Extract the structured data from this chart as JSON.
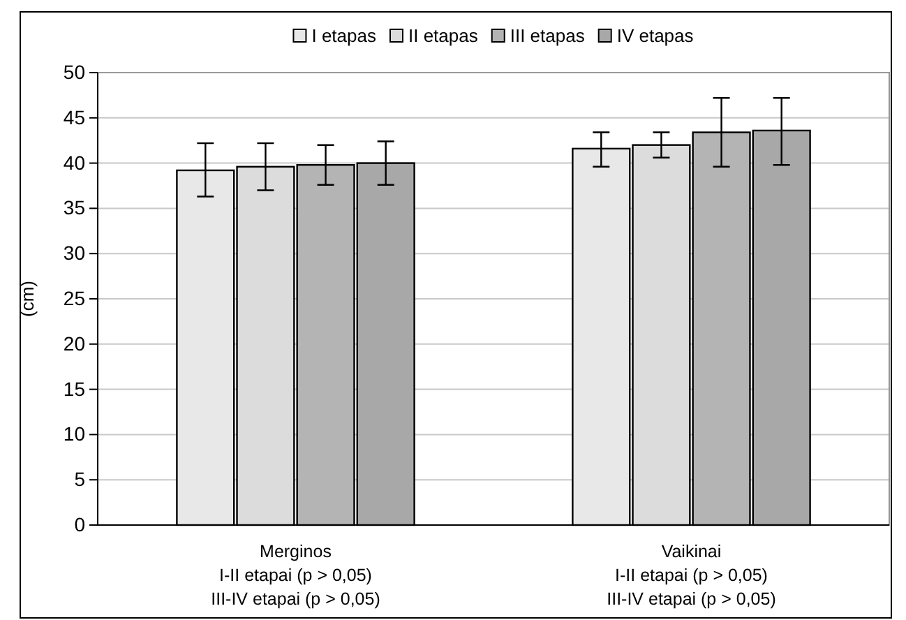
{
  "chart_data": {
    "type": "bar",
    "ylabel": "(cm)",
    "categories": [
      "Merginos\nI-II etapai (p > 0,05)\nIII-IV etapai (p > 0,05)",
      "Vaikinai\nI-II etapai (p > 0,05)\nIII-IV etapai (p > 0,05)"
    ],
    "series": [
      {
        "name": "I etapas",
        "color": "#e8e8e8",
        "values": [
          39.2,
          41.6
        ],
        "errors": [
          [
            36.3,
            42.2
          ],
          [
            39.6,
            43.4
          ]
        ]
      },
      {
        "name": "II etapas",
        "color": "#dcdcdc",
        "values": [
          39.6,
          42.0
        ],
        "errors": [
          [
            37.0,
            42.2
          ],
          [
            40.6,
            43.4
          ]
        ]
      },
      {
        "name": "III etapas",
        "color": "#b4b4b4",
        "values": [
          39.8,
          43.4
        ],
        "errors": [
          [
            37.6,
            42.0
          ],
          [
            39.6,
            47.2
          ]
        ]
      },
      {
        "name": "IV etapas",
        "color": "#a8a8a8",
        "values": [
          40.0,
          43.6
        ],
        "errors": [
          [
            37.6,
            42.4
          ],
          [
            39.8,
            47.2
          ]
        ]
      }
    ],
    "ylim": [
      0,
      50
    ],
    "yticks": [
      0,
      5,
      10,
      15,
      20,
      25,
      30,
      35,
      40,
      45,
      50
    ],
    "grid": "y",
    "legend": "top"
  }
}
